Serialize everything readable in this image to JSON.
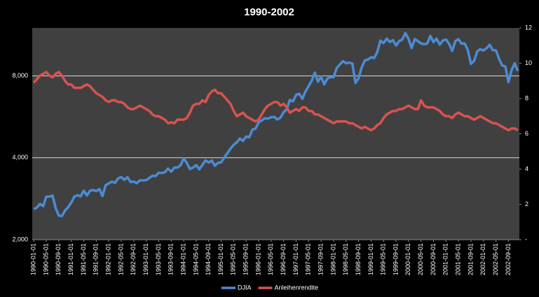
{
  "chart_data": {
    "type": "line",
    "title": "1990-2002",
    "categories": [
      "1990-01-01",
      null,
      null,
      null,
      "1990-05-01",
      null,
      null,
      null,
      "1990-09-01",
      null,
      null,
      null,
      "1991-01-01",
      null,
      null,
      null,
      "1991-05-01",
      null,
      null,
      null,
      "1991-09-01",
      null,
      null,
      null,
      "1992-01-01",
      null,
      null,
      null,
      "1992-05-01",
      null,
      null,
      null,
      "1992-09-01",
      null,
      null,
      null,
      "1993-01-01",
      null,
      null,
      null,
      "1993-05-01",
      null,
      null,
      null,
      "1993-09-01",
      null,
      null,
      null,
      "1994-01-01",
      null,
      null,
      null,
      "1994-05-01",
      null,
      null,
      null,
      "1994-09-01",
      null,
      null,
      null,
      "1995-01-01",
      null,
      null,
      null,
      "1995-05-01",
      null,
      null,
      null,
      "1995-09-01",
      null,
      null,
      null,
      "1996-01-01",
      null,
      null,
      null,
      "1996-05-01",
      null,
      null,
      null,
      "1996-09-01",
      null,
      null,
      null,
      "1997-01-01",
      null,
      null,
      null,
      "1997-05-01",
      null,
      null,
      null,
      "1997-09-01",
      null,
      null,
      null,
      "1998-01-01",
      null,
      null,
      null,
      "1998-05-01",
      null,
      null,
      null,
      "1998-09-01",
      null,
      null,
      null,
      "1999-01-01",
      null,
      null,
      null,
      "1999-05-01",
      null,
      null,
      null,
      "1999-09-01",
      null,
      null,
      null,
      "2000-01-01",
      null,
      null,
      null,
      "2000-05-01",
      null,
      null,
      null,
      "2000-09-01",
      null,
      null,
      null,
      "2001-01-01",
      null,
      null,
      null,
      "2001-05-01",
      null,
      null,
      null,
      "2001-09-01",
      null,
      null,
      null,
      "2002-01-01",
      null,
      null,
      null,
      "2002-05-01",
      null,
      null,
      null,
      "2002-09-01",
      null,
      null,
      null
    ],
    "series": [
      {
        "name": "DJIA",
        "color": "#4a8cd4",
        "values": [
          2591,
          2627,
          2707,
          2657,
          2877,
          2881,
          2905,
          2614,
          2453,
          2442,
          2560,
          2634,
          2736,
          2882,
          2914,
          2888,
          3028,
          2907,
          3025,
          3044,
          3017,
          3069,
          2895,
          3169,
          3223,
          3268,
          3236,
          3359,
          3397,
          3319,
          3394,
          3257,
          3272,
          3226,
          3306,
          3301,
          3310,
          3371,
          3435,
          3428,
          3527,
          3516,
          3540,
          3651,
          3555,
          3681,
          3684,
          3754,
          3978,
          3832,
          3636,
          3682,
          3758,
          3625,
          3765,
          3913,
          3843,
          3908,
          3739,
          3834,
          3844,
          4011,
          4158,
          4321,
          4465,
          4556,
          4709,
          4611,
          4789,
          4756,
          5075,
          5117,
          5395,
          5486,
          5588,
          5569,
          5643,
          5655,
          5529,
          5616,
          5882,
          6029,
          6522,
          6448,
          6813,
          6878,
          6584,
          7009,
          7331,
          7673,
          8223,
          7622,
          7945,
          7442,
          7823,
          7908,
          7907,
          8546,
          8800,
          9063,
          8900,
          8952,
          8883,
          7539,
          7843,
          8592,
          9117,
          9181,
          9359,
          9307,
          9786,
          10789,
          10560,
          10971,
          10655,
          10829,
          10337,
          10730,
          10878,
          11497,
          10941,
          10128,
          10922,
          10734,
          10522,
          10448,
          10522,
          11215,
          10651,
          10971,
          10415,
          10787,
          10887,
          10495,
          9879,
          10735,
          10912,
          10502,
          10523,
          9950,
          8848,
          9075,
          9852,
          10022,
          9920,
          10106,
          10404,
          9946,
          9925,
          9243,
          8737,
          8664,
          7592,
          8397,
          8896,
          8342
        ]
      },
      {
        "name": "Anleihenrendite",
        "color": "#d9534f",
        "axis": "y2",
        "values": [
          8.9,
          9.1,
          9.3,
          9.4,
          9.5,
          9.3,
          9.2,
          9.4,
          9.5,
          9.3,
          9.0,
          8.8,
          8.8,
          8.6,
          8.6,
          8.6,
          8.7,
          8.8,
          8.7,
          8.5,
          8.3,
          8.2,
          8.1,
          7.9,
          7.8,
          7.9,
          7.9,
          7.8,
          7.8,
          7.7,
          7.5,
          7.4,
          7.4,
          7.5,
          7.6,
          7.5,
          7.4,
          7.3,
          7.1,
          7.0,
          7.0,
          6.9,
          6.8,
          6.6,
          6.65,
          6.6,
          6.8,
          6.8,
          6.8,
          6.9,
          7.2,
          7.6,
          7.7,
          7.7,
          7.9,
          7.8,
          8.2,
          8.4,
          8.5,
          8.3,
          8.3,
          8.1,
          7.9,
          7.7,
          7.3,
          7.0,
          7.1,
          7.2,
          7.0,
          6.9,
          6.8,
          6.7,
          6.8,
          7.1,
          7.4,
          7.6,
          7.7,
          7.8,
          7.8,
          7.6,
          7.7,
          7.5,
          7.2,
          7.3,
          7.4,
          7.3,
          7.5,
          7.5,
          7.3,
          7.3,
          7.1,
          7.1,
          7.0,
          6.9,
          6.8,
          6.7,
          6.6,
          6.7,
          6.7,
          6.7,
          6.7,
          6.6,
          6.6,
          6.5,
          6.4,
          6.3,
          6.4,
          6.3,
          6.2,
          6.3,
          6.5,
          6.6,
          6.9,
          7.1,
          7.2,
          7.3,
          7.3,
          7.4,
          7.4,
          7.5,
          7.6,
          7.5,
          7.4,
          7.4,
          7.9,
          7.6,
          7.5,
          7.5,
          7.5,
          7.4,
          7.3,
          7.1,
          7.0,
          7.0,
          6.9,
          7.1,
          7.2,
          7.1,
          7.0,
          7.0,
          6.9,
          6.8,
          6.9,
          7.0,
          6.9,
          6.8,
          6.7,
          6.6,
          6.6,
          6.5,
          6.4,
          6.3,
          6.2,
          6.3,
          6.3,
          6.2
        ]
      }
    ],
    "ylim": [
      2000,
      12000
    ],
    "log_y": true,
    "yticks": [
      {
        "value": 2000,
        "label": "2,000"
      },
      {
        "value": 4000,
        "label": "4,000"
      },
      {
        "value": 8000,
        "label": "8,000"
      }
    ],
    "y2lim": [
      0,
      12
    ],
    "y2ticks": [
      {
        "value": 0,
        "label": "-"
      },
      2,
      4,
      6,
      8,
      10,
      12
    ],
    "grid": true,
    "legend": "bottom"
  }
}
